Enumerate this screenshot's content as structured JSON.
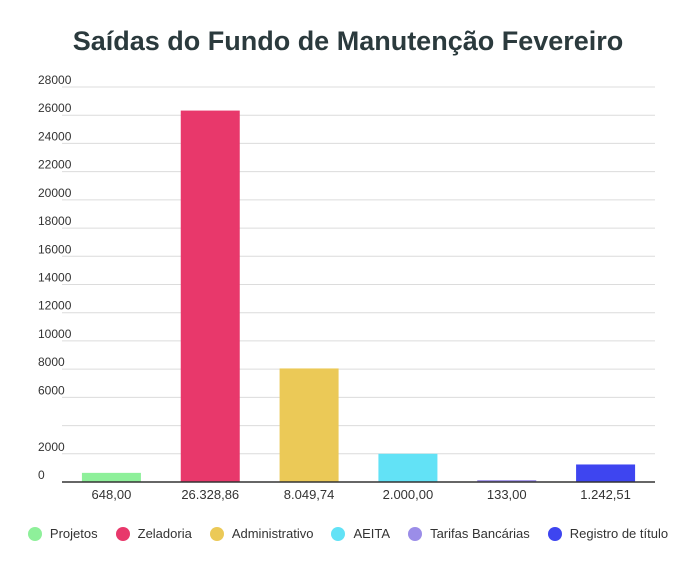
{
  "chart_data": {
    "type": "bar",
    "title": "Saídas do Fundo de Manutenção Fevereiro",
    "xlabel": "",
    "ylabel": "",
    "ylim": [
      0,
      28000
    ],
    "yticks": [
      0,
      2000,
      6000,
      8000,
      10000,
      12000,
      14000,
      16000,
      18000,
      20000,
      22000,
      24000,
      26000,
      28000
    ],
    "grid": true,
    "legend_position": "bottom",
    "categories": [
      "Projetos",
      "Zeladoria",
      "Administrativo",
      "AEITA",
      "Tarifas Bancárias",
      "Registro de título"
    ],
    "values": [
      648.0,
      26328.86,
      8049.74,
      2000.0,
      133.0,
      1242.51
    ],
    "value_labels": [
      "648,00",
      "26.328,86",
      "8.049,74",
      "2.000,00",
      "133,00",
      "1.242,51"
    ],
    "colors": [
      "#8ef09a",
      "#e8386b",
      "#ebc957",
      "#62e2f6",
      "#9b8de8",
      "#3e45f0"
    ]
  }
}
